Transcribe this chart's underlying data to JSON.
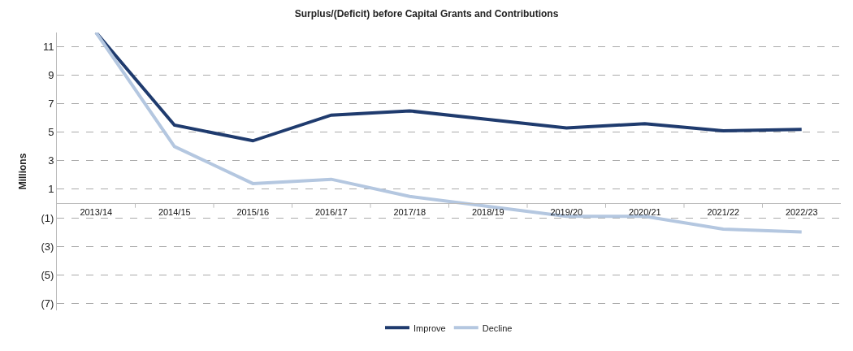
{
  "chart_data": {
    "type": "line",
    "title": "Surplus/(Deficit) before Capital Grants and Contributions",
    "ylabel": "Millions",
    "categories": [
      "2013/14",
      "2014/15",
      "2015/16",
      "2016/17",
      "2017/18",
      "2018/19",
      "2019/20",
      "2020/21",
      "2021/22",
      "2022/23"
    ],
    "series": [
      {
        "name": "Improve",
        "color": "#1f3b6e",
        "values": [
          12,
          5.5,
          4.4,
          6.2,
          6.5,
          5.9,
          5.3,
          5.6,
          5.1,
          5.2
        ]
      },
      {
        "name": "Decline",
        "color": "#b4c7e0",
        "values": [
          12,
          4.0,
          1.4,
          1.7,
          0.5,
          -0.2,
          -0.9,
          -0.9,
          -1.8,
          -2.0
        ]
      }
    ],
    "ylim": [
      -7.5,
      12
    ],
    "yticks": [
      11,
      9,
      7,
      5,
      3,
      1,
      {
        "value": -1,
        "label": "(1)"
      },
      {
        "value": -3,
        "label": "(3)"
      },
      {
        "value": -5,
        "label": "(5)"
      },
      {
        "value": -7,
        "label": "(7)"
      }
    ],
    "grid": "y",
    "legend": "bottom",
    "marker": "none",
    "line_style": "solid"
  }
}
